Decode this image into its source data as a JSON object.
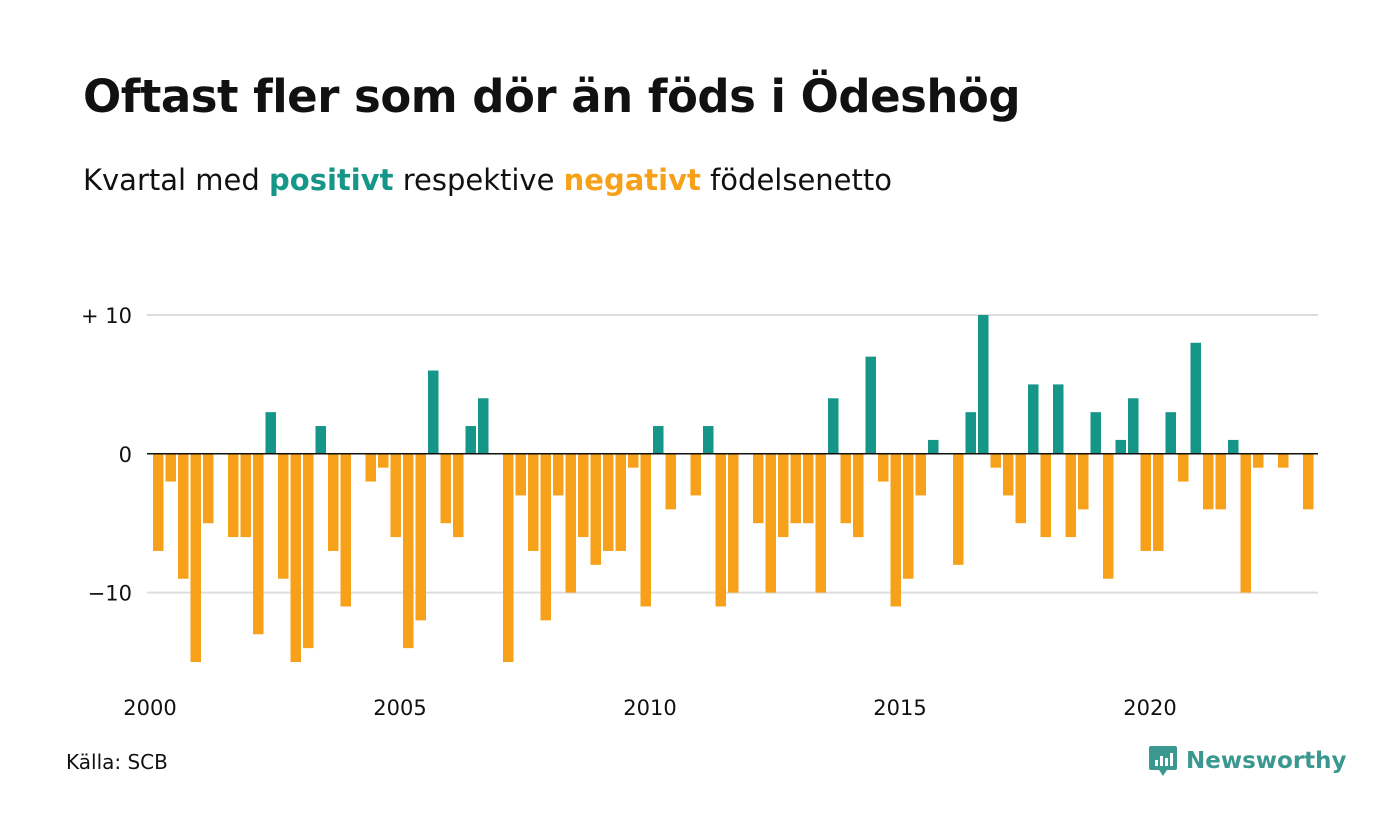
{
  "header": {
    "title": "Oftast fler som dör än föds i Ödeshög",
    "subtitle_pre": "Kvartal med",
    "subtitle_pos": "positivt",
    "subtitle_mid": "respektive",
    "subtitle_neg": "negativt",
    "subtitle_post": "födelsenetto"
  },
  "footer": {
    "source": "Källa: SCB",
    "brand": "Newsworthy"
  },
  "colors": {
    "positive": "#159688",
    "negative": "#F7A11A",
    "grid": "#dddddd",
    "brand": "#3b9890"
  },
  "chart_data": {
    "type": "bar",
    "x_start": "2000 Q1",
    "ylim": [
      -15,
      10
    ],
    "y_ticks": [
      10,
      0,
      -10
    ],
    "y_tick_labels": [
      "+ 10",
      "0",
      "−10"
    ],
    "x_ticks": [
      {
        "label": "2000",
        "year": 2000
      },
      {
        "label": "2005",
        "year": 2005
      },
      {
        "label": "2010",
        "year": 2010
      },
      {
        "label": "2015",
        "year": 2015
      },
      {
        "label": "2020",
        "year": 2020
      }
    ],
    "values": [
      -7,
      -2,
      -9,
      -15,
      -5,
      0,
      -6,
      -6,
      -13,
      3,
      -9,
      -15,
      -14,
      2,
      -7,
      -11,
      0,
      -2,
      -1,
      -6,
      -14,
      -12,
      6,
      -5,
      -6,
      2,
      4,
      0,
      -15,
      -3,
      -7,
      -12,
      -3,
      -10,
      -6,
      -8,
      -7,
      -7,
      -1,
      -11,
      2,
      -4,
      0,
      -3,
      2,
      -11,
      -10,
      0,
      -5,
      -10,
      -6,
      -5,
      -5,
      -10,
      4,
      -5,
      -6,
      7,
      -2,
      -11,
      -9,
      -3,
      1,
      0,
      -8,
      3,
      10,
      -1,
      -3,
      -5,
      5,
      -6,
      5,
      -6,
      -4,
      3,
      -9,
      1,
      4,
      -7,
      -7,
      3,
      -2,
      8,
      -4,
      -4,
      1,
      -10,
      -1,
      0,
      -1,
      0,
      -4
    ]
  }
}
